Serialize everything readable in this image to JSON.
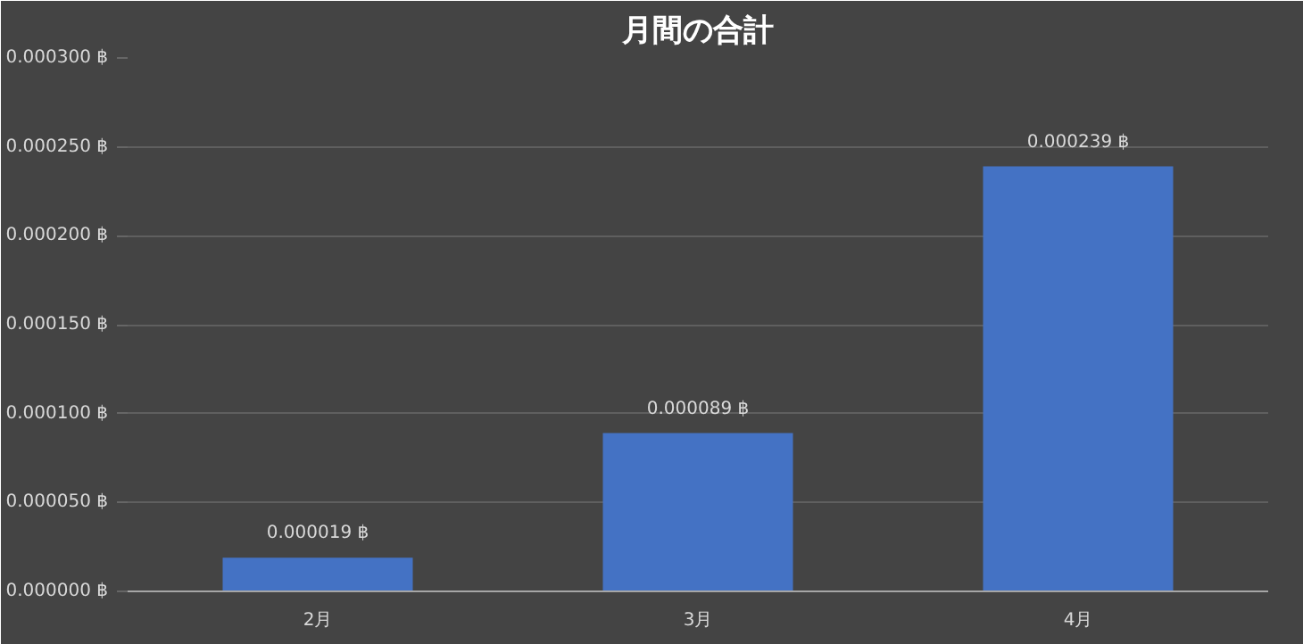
{
  "chart_data": {
    "type": "bar",
    "title": "月間の合計",
    "categories": [
      "2月",
      "3月",
      "4月"
    ],
    "values": [
      1.9e-05,
      8.9e-05,
      0.000239
    ],
    "value_labels": [
      "0.000019 ฿",
      "0.000089 ฿",
      "0.000239 ฿"
    ],
    "color": "#4472c4",
    "ylim": [
      0,
      0.0003
    ],
    "yticks": [
      {
        "value": 0,
        "label": "0.000000 ฿"
      },
      {
        "value": 5e-05,
        "label": "0.000050 ฿"
      },
      {
        "value": 0.0001,
        "label": "0.000100 ฿"
      },
      {
        "value": 0.00015,
        "label": "0.000150 ฿"
      },
      {
        "value": 0.0002,
        "label": "0.000200 ฿"
      },
      {
        "value": 0.00025,
        "label": "0.000250 ฿"
      },
      {
        "value": 0.0003,
        "label": "0.000300 ฿"
      }
    ],
    "grid": "y"
  }
}
